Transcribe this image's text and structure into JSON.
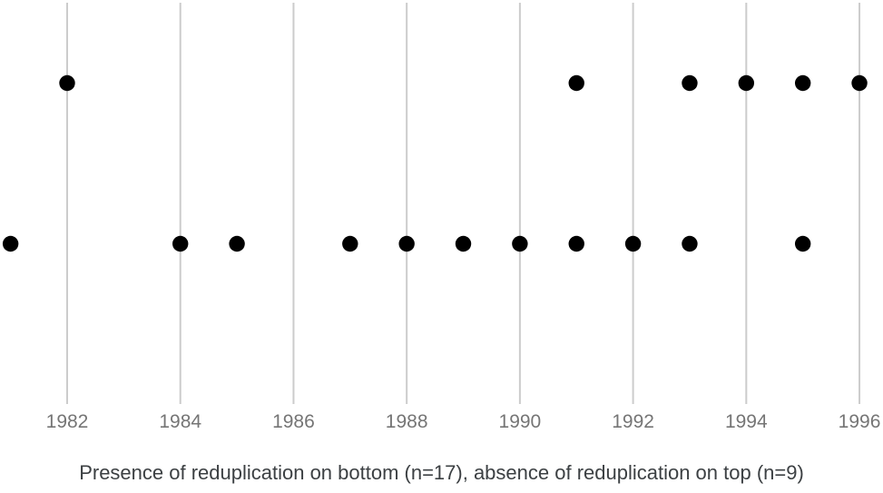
{
  "chart_data": {
    "type": "scatter",
    "subtype": "dot-plot-timeline",
    "caption": "Presence of reduplication on bottom (n=17), absence of reduplication on top (n=9)",
    "x_ticks": [
      1982,
      1984,
      1986,
      1988,
      1990,
      1992,
      1994,
      1996
    ],
    "x_range_visible": [
      1980.8,
      1996.4
    ],
    "grid": true,
    "legend_position": "none",
    "series": [
      {
        "name": "presence of reduplication",
        "row": "bottom",
        "n": 17,
        "visible_dot_years": [
          1981,
          1984,
          1985,
          1987,
          1988,
          1989,
          1990,
          1991,
          1992,
          1993,
          1995
        ]
      },
      {
        "name": "absence of reduplication",
        "row": "top",
        "n": 9,
        "visible_dot_years": [
          1982,
          1991,
          1993,
          1994,
          1995,
          1996
        ]
      }
    ],
    "colors": {
      "dot": "#000000",
      "gridline": "#cccccc",
      "tick_label": "#757575",
      "caption": "#3c4043",
      "background": "#ffffff"
    }
  }
}
